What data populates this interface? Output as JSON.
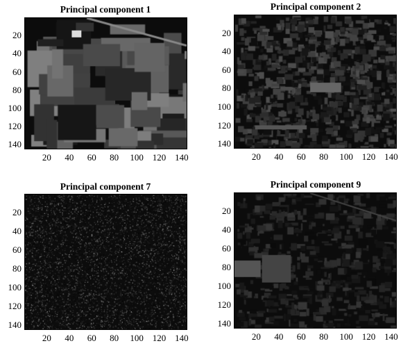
{
  "panels": [
    {
      "title": "Principal component 1",
      "y_ticks": [
        "20",
        "40",
        "60",
        "80",
        "100",
        "120",
        "140"
      ],
      "x_ticks": [
        "20",
        "40",
        "60",
        "80",
        "100",
        "120",
        "140"
      ],
      "texture": "smooth-patches",
      "brightness": 0.34
    },
    {
      "title": "Principal component 2",
      "y_ticks": [
        "20",
        "40",
        "60",
        "80",
        "100",
        "120",
        "140"
      ],
      "x_ticks": [
        "20",
        "40",
        "60",
        "80",
        "100",
        "120",
        "140"
      ],
      "texture": "mottled",
      "brightness": 0.22
    },
    {
      "title": "Principal component 7",
      "y_ticks": [
        "20",
        "40",
        "60",
        "80",
        "100",
        "120",
        "140"
      ],
      "x_ticks": [
        "20",
        "40",
        "60",
        "80",
        "100",
        "120",
        "140"
      ],
      "texture": "speckle-noise",
      "brightness": 0.12
    },
    {
      "title": "Principal component 9",
      "y_ticks": [
        "20",
        "40",
        "60",
        "80",
        "100",
        "120",
        "140"
      ],
      "x_ticks": [
        "20",
        "40",
        "60",
        "80",
        "100",
        "120",
        "140"
      ],
      "texture": "dark-patches",
      "brightness": 0.16
    }
  ]
}
